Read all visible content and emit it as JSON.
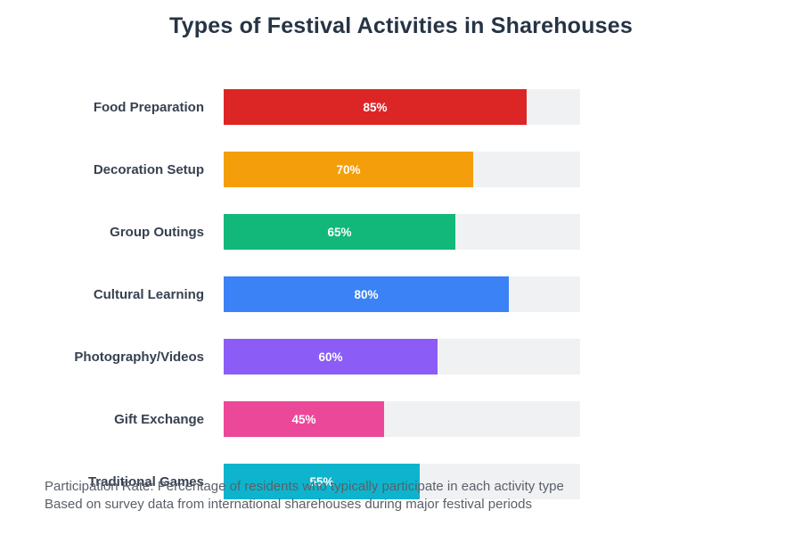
{
  "title": "Types of Festival Activities in Sharehouses",
  "chart_data": {
    "type": "bar",
    "orientation": "horizontal",
    "title": "Types of Festival Activities in Sharehouses",
    "categories": [
      "Food Preparation",
      "Decoration Setup",
      "Group Outings",
      "Cultural Learning",
      "Photography/Videos",
      "Gift Exchange",
      "Traditional Games"
    ],
    "values": [
      85,
      70,
      65,
      80,
      60,
      45,
      55
    ],
    "value_labels": [
      "85%",
      "70%",
      "65%",
      "80%",
      "60%",
      "45%",
      "55%"
    ],
    "bar_colors": [
      "#dc2626",
      "#f59e0b",
      "#12b879",
      "#3b82f6",
      "#8b5cf6",
      "#ec4899",
      "#0eb4cd"
    ],
    "xlim": [
      0,
      100
    ],
    "unit": "%",
    "grid": false,
    "legend": false
  },
  "theme": {
    "track_color": "#f0f1f3",
    "title_color": "#263445",
    "label_color": "#374151",
    "value_label_color": "#ffffff",
    "footer_color": "#5a6068",
    "background": "#ffffff"
  },
  "footer": {
    "line1": "Participation Rate: Percentage of residents who typically participate in each activity type",
    "line2": "Based on survey data from international sharehouses during major festival periods"
  }
}
